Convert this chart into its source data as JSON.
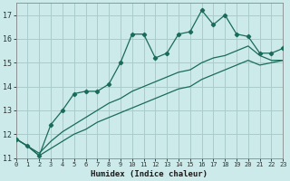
{
  "xlabel": "Humidex (Indice chaleur)",
  "background_color": "#cceaea",
  "grid_color": "#aacccc",
  "line_color": "#1a6b5a",
  "x_values": [
    0,
    1,
    2,
    3,
    4,
    5,
    6,
    7,
    8,
    9,
    10,
    11,
    12,
    13,
    14,
    15,
    16,
    17,
    18,
    19,
    20,
    21,
    22,
    23
  ],
  "y_main": [
    11.8,
    11.5,
    11.1,
    12.4,
    13.0,
    13.7,
    13.8,
    13.8,
    14.1,
    15.0,
    16.2,
    16.2,
    15.2,
    15.4,
    16.2,
    16.3,
    17.2,
    16.6,
    17.0,
    16.2,
    16.1,
    15.4,
    15.4,
    15.6
  ],
  "y_line2": [
    11.8,
    11.5,
    11.2,
    11.7,
    12.1,
    12.4,
    12.7,
    13.0,
    13.3,
    13.5,
    13.8,
    14.0,
    14.2,
    14.4,
    14.6,
    14.7,
    15.0,
    15.2,
    15.3,
    15.5,
    15.7,
    15.3,
    15.1,
    15.1
  ],
  "y_line3": [
    11.8,
    11.5,
    11.1,
    11.4,
    11.7,
    12.0,
    12.2,
    12.5,
    12.7,
    12.9,
    13.1,
    13.3,
    13.5,
    13.7,
    13.9,
    14.0,
    14.3,
    14.5,
    14.7,
    14.9,
    15.1,
    14.9,
    15.0,
    15.1
  ],
  "ylim": [
    11,
    17.5
  ],
  "yticks": [
    11,
    12,
    13,
    14,
    15,
    16,
    17
  ],
  "xlim": [
    0,
    23
  ]
}
